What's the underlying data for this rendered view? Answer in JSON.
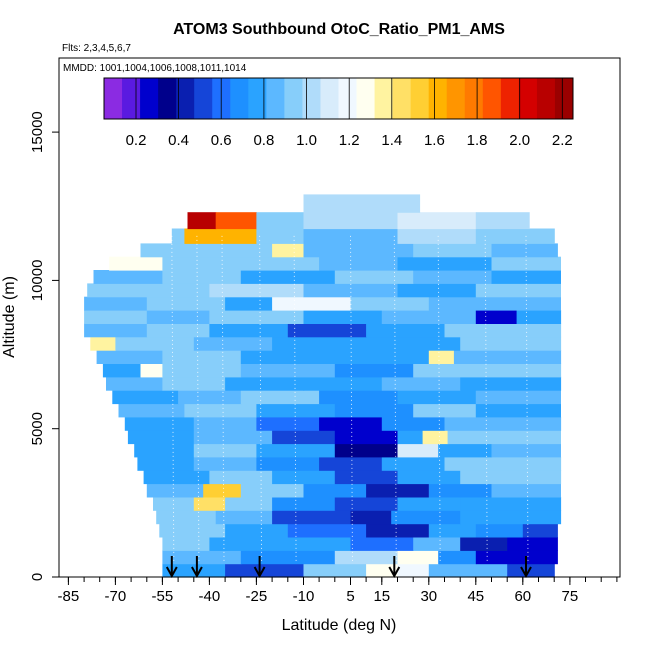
{
  "chart_data": {
    "type": "heatmap",
    "title": "ATOM3 Southbound OtoC_Ratio_PM1_AMS",
    "flights_label": "Flts: 2,3,4,5,6,7",
    "dates_label": "MMDD: 1001,1004,1006,1008,1011,1014",
    "xlabel": "Latitude (deg N)",
    "ylabel": "Altitude (m)",
    "xlim": [
      -88,
      91
    ],
    "ylim": [
      0,
      17500
    ],
    "x_ticks": [
      -85,
      -70,
      -55,
      -40,
      -25,
      -10,
      5,
      15,
      30,
      45,
      60,
      75
    ],
    "x_minor_ticks": [
      -85,
      -80,
      -75,
      -70,
      -65,
      -60,
      -55,
      -50,
      -45,
      -40,
      -35,
      -30,
      -25,
      -20,
      -15,
      -10,
      -5,
      0,
      5,
      10,
      15,
      20,
      25,
      30,
      35,
      40,
      45,
      50,
      55,
      60,
      65,
      70,
      75,
      80,
      85,
      90
    ],
    "y_ticks": [
      0,
      5000,
      10000,
      15000
    ],
    "colorbar": {
      "min": 0.05,
      "max": 2.25,
      "ticks": [
        "0.2",
        "0.4",
        "0.6",
        "0.8",
        "1.0",
        "1.2",
        "1.4",
        "1.6",
        "1.8",
        "2.0",
        "2.2"
      ],
      "tick_values": [
        0.2,
        0.4,
        0.6,
        0.8,
        1.0,
        1.2,
        1.4,
        1.6,
        1.8,
        2.0,
        2.2
      ],
      "colors": [
        "#8b2be2",
        "#5a1ae0",
        "#0000cd",
        "#00008b",
        "#0a1fb0",
        "#1545d8",
        "#1e6fff",
        "#1e90ff",
        "#2aa3ff",
        "#5cb8ff",
        "#87cefa",
        "#b0dcfa",
        "#d8ecfb",
        "#f0f8ff",
        "#fffff0",
        "#fff3a0",
        "#ffe066",
        "#ffcf33",
        "#ffb300",
        "#ff9500",
        "#ff7a00",
        "#ff5500",
        "#ee2200",
        "#d40000",
        "#b80000",
        "#9a0000"
      ]
    },
    "profile_arrows_lat": [
      -52,
      -44,
      -24,
      19,
      61
    ],
    "bands": [
      {
        "alt_min": 0,
        "alt_max": 450,
        "lat_min": -55,
        "lat_max": 70,
        "segments": [
          [
            -55,
            -35,
            0.75
          ],
          [
            -35,
            -10,
            0.55
          ],
          [
            -10,
            10,
            0.9
          ],
          [
            10,
            20,
            1.3
          ],
          [
            20,
            30,
            1.2
          ],
          [
            30,
            55,
            0.85
          ],
          [
            55,
            70,
            0.5
          ]
        ]
      },
      {
        "alt_min": 450,
        "alt_max": 900,
        "lat_min": -55,
        "lat_max": 71,
        "segments": [
          [
            -55,
            -30,
            0.85
          ],
          [
            -30,
            0,
            0.7
          ],
          [
            0,
            20,
            1.05
          ],
          [
            20,
            33,
            1.25
          ],
          [
            33,
            45,
            0.7
          ],
          [
            45,
            60,
            0.25
          ],
          [
            60,
            71,
            0.3
          ]
        ]
      },
      {
        "alt_min": 900,
        "alt_max": 1350,
        "lat_min": -55,
        "lat_max": 71,
        "segments": [
          [
            -55,
            -40,
            0.9
          ],
          [
            -40,
            -20,
            0.8
          ],
          [
            -20,
            5,
            0.75
          ],
          [
            5,
            25,
            0.6
          ],
          [
            25,
            40,
            0.85
          ],
          [
            40,
            55,
            0.4
          ],
          [
            55,
            71,
            0.25
          ]
        ]
      },
      {
        "alt_min": 1350,
        "alt_max": 1800,
        "lat_min": -56,
        "lat_max": 71,
        "segments": [
          [
            -56,
            -35,
            0.95
          ],
          [
            -35,
            -15,
            0.8
          ],
          [
            -15,
            10,
            0.6
          ],
          [
            10,
            30,
            0.45
          ],
          [
            30,
            45,
            0.8
          ],
          [
            45,
            60,
            0.65
          ],
          [
            60,
            71,
            0.55
          ]
        ]
      },
      {
        "alt_min": 1800,
        "alt_max": 2250,
        "lat_min": -57,
        "lat_max": 72,
        "segments": [
          [
            -57,
            -38,
            0.9
          ],
          [
            -38,
            -20,
            0.85
          ],
          [
            -20,
            5,
            0.55
          ],
          [
            5,
            18,
            0.4
          ],
          [
            18,
            40,
            0.7
          ],
          [
            40,
            72,
            0.75
          ]
        ]
      },
      {
        "alt_min": 2250,
        "alt_max": 2700,
        "lat_min": -58,
        "lat_max": 72,
        "segments": [
          [
            -58,
            -45,
            0.9
          ],
          [
            -45,
            -35,
            1.45
          ],
          [
            -35,
            -20,
            0.95
          ],
          [
            -20,
            0,
            0.7
          ],
          [
            0,
            20,
            0.5
          ],
          [
            20,
            40,
            0.75
          ],
          [
            40,
            72,
            0.8
          ]
        ]
      },
      {
        "alt_min": 2700,
        "alt_max": 3150,
        "lat_min": -60,
        "lat_max": 72,
        "segments": [
          [
            -60,
            -42,
            0.85
          ],
          [
            -42,
            -30,
            1.55
          ],
          [
            -30,
            -10,
            0.9
          ],
          [
            -10,
            10,
            0.65
          ],
          [
            10,
            30,
            0.45
          ],
          [
            30,
            50,
            0.7
          ],
          [
            50,
            72,
            0.85
          ]
        ]
      },
      {
        "alt_min": 3150,
        "alt_max": 3600,
        "lat_min": -61,
        "lat_max": 72,
        "segments": [
          [
            -61,
            -40,
            0.8
          ],
          [
            -40,
            -20,
            0.95
          ],
          [
            -20,
            0,
            0.75
          ],
          [
            0,
            20,
            0.55
          ],
          [
            20,
            40,
            0.8
          ],
          [
            40,
            72,
            0.9
          ]
        ]
      },
      {
        "alt_min": 3600,
        "alt_max": 4050,
        "lat_min": -63,
        "lat_max": 72,
        "segments": [
          [
            -63,
            -45,
            0.75
          ],
          [
            -45,
            -25,
            0.85
          ],
          [
            -25,
            -5,
            0.7
          ],
          [
            -5,
            15,
            0.5
          ],
          [
            15,
            35,
            0.75
          ],
          [
            35,
            72,
            0.95
          ]
        ]
      },
      {
        "alt_min": 4050,
        "alt_max": 4500,
        "lat_min": -64,
        "lat_max": 72,
        "segments": [
          [
            -64,
            -45,
            0.8
          ],
          [
            -45,
            -25,
            0.9
          ],
          [
            -25,
            0,
            0.75
          ],
          [
            0,
            20,
            0.35
          ],
          [
            20,
            33,
            1.1
          ],
          [
            33,
            50,
            0.8
          ],
          [
            50,
            72,
            0.85
          ]
        ]
      },
      {
        "alt_min": 4500,
        "alt_max": 4950,
        "lat_min": -66,
        "lat_max": 72,
        "segments": [
          [
            -66,
            -45,
            0.75
          ],
          [
            -45,
            -20,
            0.85
          ],
          [
            -20,
            0,
            0.55
          ],
          [
            0,
            20,
            0.3
          ],
          [
            20,
            28,
            0.75
          ],
          [
            28,
            36,
            1.35
          ],
          [
            36,
            72,
            0.9
          ]
        ]
      },
      {
        "alt_min": 4950,
        "alt_max": 5400,
        "lat_min": -67,
        "lat_max": 72,
        "segments": [
          [
            -67,
            -45,
            0.8
          ],
          [
            -45,
            -25,
            0.85
          ],
          [
            -25,
            -5,
            0.6
          ],
          [
            -5,
            15,
            0.3
          ],
          [
            15,
            35,
            0.7
          ],
          [
            35,
            72,
            0.85
          ]
        ]
      },
      {
        "alt_min": 5400,
        "alt_max": 5850,
        "lat_min": -69,
        "lat_max": 72,
        "segments": [
          [
            -69,
            -48,
            0.85
          ],
          [
            -48,
            -25,
            0.9
          ],
          [
            -25,
            0,
            0.75
          ],
          [
            0,
            25,
            0.65
          ],
          [
            25,
            45,
            0.95
          ],
          [
            45,
            72,
            0.8
          ]
        ]
      },
      {
        "alt_min": 5850,
        "alt_max": 6300,
        "lat_min": -71,
        "lat_max": 72,
        "segments": [
          [
            -71,
            -50,
            0.8
          ],
          [
            -50,
            -30,
            0.85
          ],
          [
            -30,
            -5,
            0.9
          ],
          [
            -5,
            20,
            0.7
          ],
          [
            20,
            45,
            0.8
          ],
          [
            45,
            72,
            0.85
          ]
        ]
      },
      {
        "alt_min": 6300,
        "alt_max": 6750,
        "lat_min": -73,
        "lat_max": 72,
        "segments": [
          [
            -73,
            -55,
            0.85
          ],
          [
            -55,
            -35,
            0.95
          ],
          [
            -35,
            -10,
            0.8
          ],
          [
            -10,
            15,
            0.75
          ],
          [
            15,
            40,
            0.85
          ],
          [
            40,
            72,
            0.8
          ]
        ]
      },
      {
        "alt_min": 6750,
        "alt_max": 7200,
        "lat_min": -74,
        "lat_max": 72,
        "segments": [
          [
            -74,
            -62,
            0.8
          ],
          [
            -62,
            -55,
            1.3
          ],
          [
            -55,
            -30,
            0.9
          ],
          [
            -30,
            0,
            0.85
          ],
          [
            0,
            25,
            0.7
          ],
          [
            25,
            72,
            0.9
          ]
        ]
      },
      {
        "alt_min": 7200,
        "alt_max": 7650,
        "lat_min": -76,
        "lat_max": 72,
        "segments": [
          [
            -76,
            -55,
            0.85
          ],
          [
            -55,
            -30,
            0.95
          ],
          [
            -30,
            0,
            0.8
          ],
          [
            0,
            30,
            0.75
          ],
          [
            30,
            38,
            1.4
          ],
          [
            38,
            72,
            0.85
          ]
        ]
      },
      {
        "alt_min": 7650,
        "alt_max": 8100,
        "lat_min": -78,
        "lat_max": 72,
        "segments": [
          [
            -78,
            -70,
            1.4
          ],
          [
            -70,
            -45,
            0.9
          ],
          [
            -45,
            -20,
            0.85
          ],
          [
            -20,
            10,
            0.75
          ],
          [
            10,
            40,
            0.8
          ],
          [
            40,
            72,
            0.9
          ]
        ]
      },
      {
        "alt_min": 8100,
        "alt_max": 8550,
        "lat_min": -80,
        "lat_max": 72,
        "segments": [
          [
            -80,
            -60,
            0.85
          ],
          [
            -60,
            -40,
            0.9
          ],
          [
            -40,
            -15,
            0.8
          ],
          [
            -15,
            10,
            0.55
          ],
          [
            10,
            35,
            0.75
          ],
          [
            35,
            72,
            0.9
          ]
        ]
      },
      {
        "alt_min": 8550,
        "alt_max": 9000,
        "lat_min": -80,
        "lat_max": 72,
        "segments": [
          [
            -80,
            -60,
            0.9
          ],
          [
            -60,
            -40,
            0.85
          ],
          [
            -40,
            -10,
            0.95
          ],
          [
            -10,
            15,
            0.8
          ],
          [
            15,
            45,
            0.85
          ],
          [
            45,
            58,
            0.25
          ],
          [
            58,
            72,
            0.8
          ]
        ]
      },
      {
        "alt_min": 9000,
        "alt_max": 9450,
        "lat_min": -80,
        "lat_max": 72,
        "segments": [
          [
            -80,
            -60,
            0.85
          ],
          [
            -60,
            -35,
            0.95
          ],
          [
            -35,
            -20,
            0.8
          ],
          [
            -20,
            5,
            1.2
          ],
          [
            5,
            30,
            0.9
          ],
          [
            30,
            72,
            0.85
          ]
        ]
      },
      {
        "alt_min": 9450,
        "alt_max": 9900,
        "lat_min": -79,
        "lat_max": 72,
        "segments": [
          [
            -79,
            -60,
            0.95
          ],
          [
            -60,
            -40,
            0.9
          ],
          [
            -40,
            -10,
            1.0
          ],
          [
            -10,
            20,
            0.85
          ],
          [
            20,
            45,
            0.75
          ],
          [
            45,
            72,
            0.9
          ]
        ]
      },
      {
        "alt_min": 9900,
        "alt_max": 10350,
        "lat_min": -77,
        "lat_max": 72,
        "segments": [
          [
            -77,
            -55,
            0.85
          ],
          [
            -55,
            -30,
            0.95
          ],
          [
            -30,
            0,
            0.8
          ],
          [
            0,
            25,
            0.9
          ],
          [
            25,
            50,
            0.85
          ],
          [
            50,
            72,
            0.8
          ]
        ]
      },
      {
        "alt_min": 10350,
        "alt_max": 10800,
        "lat_min": -72,
        "lat_max": 72,
        "segments": [
          [
            -72,
            -55,
            1.3
          ],
          [
            -55,
            -35,
            0.95
          ],
          [
            -35,
            -5,
            0.9
          ],
          [
            -5,
            20,
            0.85
          ],
          [
            20,
            50,
            0.8
          ],
          [
            50,
            72,
            0.9
          ]
        ]
      },
      {
        "alt_min": 10800,
        "alt_max": 11250,
        "lat_min": -62,
        "lat_max": 71,
        "segments": [
          [
            -62,
            -45,
            0.9
          ],
          [
            -45,
            -20,
            0.95
          ],
          [
            -20,
            -10,
            1.4
          ],
          [
            -10,
            25,
            0.85
          ],
          [
            25,
            50,
            0.9
          ],
          [
            50,
            71,
            0.85
          ]
        ]
      },
      {
        "alt_min": 11250,
        "alt_max": 11750,
        "lat_min": -52,
        "lat_max": 70,
        "segments": [
          [
            -52,
            -48,
            0.9
          ],
          [
            -48,
            -25,
            1.65
          ],
          [
            -25,
            -10,
            0.95
          ],
          [
            -10,
            20,
            0.85
          ],
          [
            20,
            45,
            1.05
          ],
          [
            45,
            70,
            0.9
          ]
        ]
      },
      {
        "alt_min": 11750,
        "alt_max": 12300,
        "lat_min": -47,
        "lat_max": 62,
        "segments": [
          [
            -47,
            -38,
            2.1
          ],
          [
            -38,
            -25,
            1.85
          ],
          [
            -25,
            -10,
            0.95
          ],
          [
            -10,
            20,
            1.0
          ],
          [
            20,
            45,
            1.15
          ],
          [
            45,
            62,
            1.05
          ]
        ]
      },
      {
        "alt_min": 12300,
        "alt_max": 12900,
        "lat_min": -10,
        "lat_max": 27,
        "segments": [
          [
            -10,
            27,
            1.0
          ]
        ]
      }
    ]
  }
}
